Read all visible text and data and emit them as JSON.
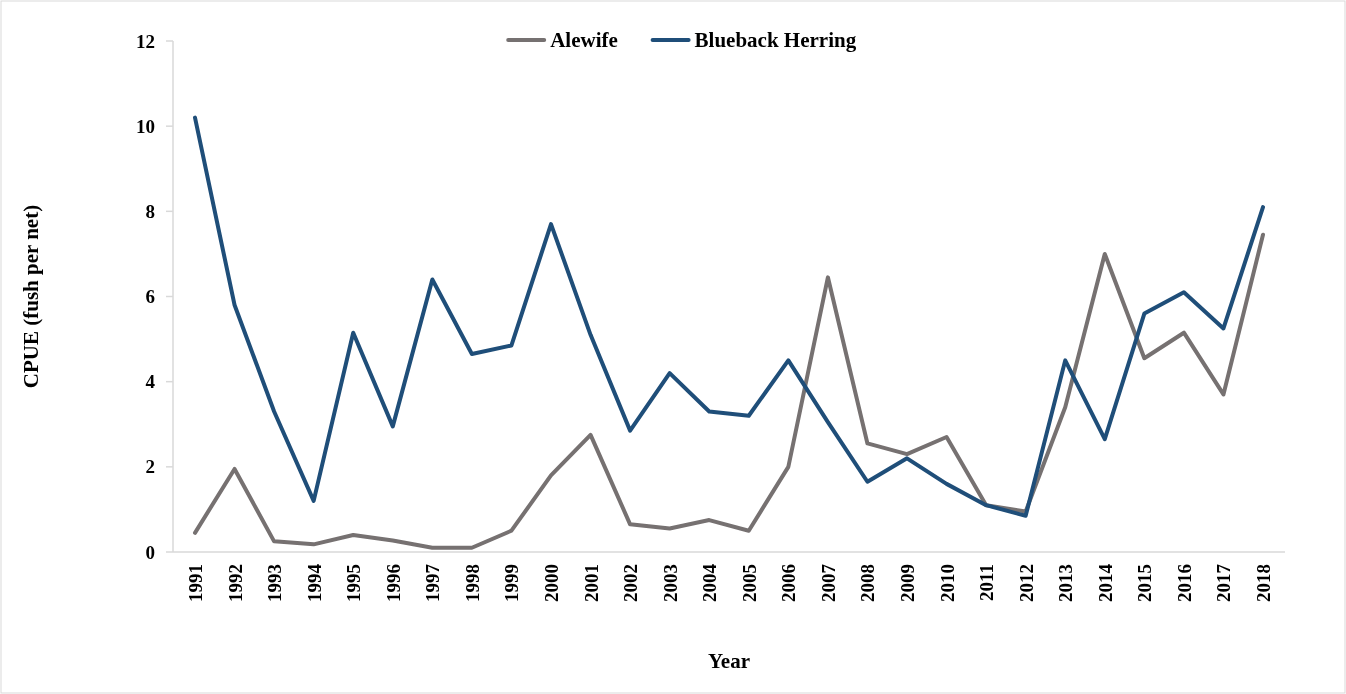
{
  "chart_data": {
    "type": "line",
    "xlabel": "Year",
    "ylabel": "CPUE (fush per net)",
    "categories": [
      "1991",
      "1992",
      "1993",
      "1994",
      "1995",
      "1996",
      "1997",
      "1998",
      "1999",
      "2000",
      "2001",
      "2002",
      "2003",
      "2004",
      "2005",
      "2006",
      "2007",
      "2008",
      "2009",
      "2010",
      "2011",
      "2012",
      "2013",
      "2014",
      "2015",
      "2016",
      "2017",
      "2018"
    ],
    "series": [
      {
        "name": "Alewife",
        "color": "#767171",
        "values": [
          0.45,
          1.95,
          0.25,
          0.18,
          0.4,
          0.27,
          0.1,
          0.1,
          0.5,
          1.8,
          2.75,
          0.65,
          0.55,
          0.75,
          0.5,
          2.0,
          6.45,
          2.55,
          2.3,
          2.7,
          1.1,
          0.95,
          3.4,
          7.0,
          4.55,
          5.15,
          3.7,
          7.45
        ]
      },
      {
        "name": "Blueback Herring",
        "color": "#1f4e79",
        "values": [
          10.2,
          5.8,
          3.3,
          1.2,
          5.15,
          2.95,
          6.4,
          4.65,
          4.85,
          7.7,
          5.1,
          2.85,
          4.2,
          3.3,
          3.2,
          4.5,
          3.05,
          1.65,
          2.2,
          1.6,
          1.1,
          0.85,
          4.5,
          2.65,
          5.6,
          6.1,
          5.25,
          8.1
        ]
      }
    ],
    "ylim": [
      0,
      12
    ],
    "yticks": [
      0,
      2,
      4,
      6,
      8,
      10,
      12
    ],
    "grid": false,
    "legend": "top",
    "marker": "none",
    "line_style": "solid"
  }
}
